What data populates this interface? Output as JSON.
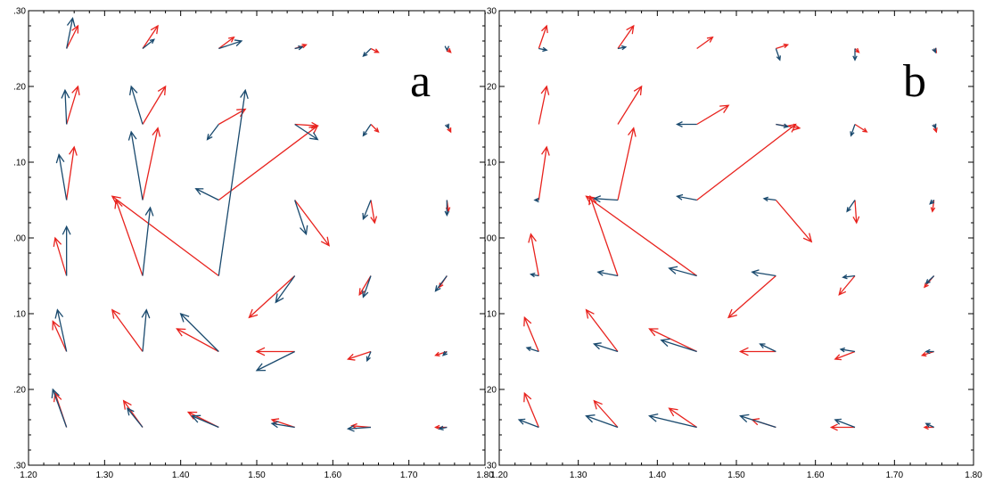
{
  "chart_data": [
    {
      "type": "scatter",
      "subtype": "vector-field",
      "panel_label": "a",
      "xlim": [
        1.2,
        1.8
      ],
      "ylim": [
        -0.3,
        0.3
      ],
      "xticks": [
        "1.20",
        "1.30",
        "1.40",
        "1.50",
        "1.60",
        "1.70",
        "1.80"
      ],
      "yticks": [
        ".30",
        ".20",
        ".10",
        ".00",
        ".10",
        ".20",
        ".30"
      ],
      "grid": false,
      "colors": {
        "series1": "#e8231e",
        "series2": "#1a4a6e"
      },
      "series": [
        {
          "color": "#e8231e",
          "vectors": [
            [
              1.25,
              0.25,
              1.265,
              0.28
            ],
            [
              1.35,
              0.25,
              1.37,
              0.28
            ],
            [
              1.45,
              0.25,
              1.47,
              0.265
            ],
            [
              1.55,
              0.25,
              1.565,
              0.255
            ],
            [
              1.65,
              0.25,
              1.66,
              0.245
            ],
            [
              1.75,
              0.25,
              1.755,
              0.245
            ],
            [
              1.25,
              0.15,
              1.265,
              0.2
            ],
            [
              1.35,
              0.15,
              1.38,
              0.2
            ],
            [
              1.45,
              0.15,
              1.485,
              0.17
            ],
            [
              1.55,
              0.15,
              1.58,
              0.148
            ],
            [
              1.65,
              0.15,
              1.66,
              0.14
            ],
            [
              1.75,
              0.15,
              1.755,
              0.14
            ],
            [
              1.25,
              0.05,
              1.26,
              0.12
            ],
            [
              1.35,
              0.05,
              1.37,
              0.145
            ],
            [
              1.45,
              0.05,
              1.58,
              0.148
            ],
            [
              1.55,
              0.05,
              1.595,
              -0.01
            ],
            [
              1.65,
              0.05,
              1.655,
              0.02
            ],
            [
              1.75,
              0.05,
              1.752,
              0.035
            ],
            [
              1.25,
              -0.05,
              1.235,
              0.0
            ],
            [
              1.35,
              -0.05,
              1.315,
              0.05
            ],
            [
              1.45,
              -0.05,
              1.31,
              0.055
            ],
            [
              1.55,
              -0.05,
              1.49,
              -0.105
            ],
            [
              1.65,
              -0.05,
              1.635,
              -0.075
            ],
            [
              1.75,
              -0.05,
              1.74,
              -0.065
            ],
            [
              1.25,
              -0.15,
              1.232,
              -0.11
            ],
            [
              1.35,
              -0.15,
              1.31,
              -0.095
            ],
            [
              1.45,
              -0.15,
              1.395,
              -0.12
            ],
            [
              1.55,
              -0.15,
              1.5,
              -0.15
            ],
            [
              1.65,
              -0.15,
              1.62,
              -0.16
            ],
            [
              1.75,
              -0.15,
              1.735,
              -0.155
            ],
            [
              1.25,
              -0.25,
              1.235,
              -0.205
            ],
            [
              1.35,
              -0.25,
              1.325,
              -0.215
            ],
            [
              1.45,
              -0.25,
              1.41,
              -0.23
            ],
            [
              1.55,
              -0.25,
              1.52,
              -0.24
            ],
            [
              1.65,
              -0.25,
              1.625,
              -0.248
            ],
            [
              1.75,
              -0.25,
              1.735,
              -0.25
            ]
          ]
        },
        {
          "color": "#1a4a6e",
          "vectors": [
            [
              1.25,
              0.25,
              1.258,
              0.29
            ],
            [
              1.35,
              0.25,
              1.365,
              0.262
            ],
            [
              1.45,
              0.25,
              1.48,
              0.26
            ],
            [
              1.55,
              0.25,
              1.56,
              0.252
            ],
            [
              1.65,
              0.25,
              1.64,
              0.24
            ],
            [
              1.75,
              0.25,
              1.75,
              0.248
            ],
            [
              1.25,
              0.15,
              1.248,
              0.195
            ],
            [
              1.35,
              0.15,
              1.335,
              0.2
            ],
            [
              1.45,
              0.15,
              1.435,
              0.13
            ],
            [
              1.55,
              0.15,
              1.58,
              0.13
            ],
            [
              1.65,
              0.15,
              1.64,
              0.135
            ],
            [
              1.75,
              0.15,
              1.752,
              0.145
            ],
            [
              1.25,
              0.05,
              1.24,
              0.11
            ],
            [
              1.35,
              0.05,
              1.335,
              0.14
            ],
            [
              1.45,
              0.05,
              1.42,
              0.065
            ],
            [
              1.55,
              0.05,
              1.565,
              0.005
            ],
            [
              1.65,
              0.05,
              1.64,
              0.025
            ],
            [
              1.75,
              0.05,
              1.75,
              0.03
            ],
            [
              1.25,
              -0.05,
              1.25,
              0.015
            ],
            [
              1.35,
              -0.05,
              1.36,
              0.04
            ],
            [
              1.45,
              -0.05,
              1.485,
              0.195
            ],
            [
              1.55,
              -0.05,
              1.525,
              -0.085
            ],
            [
              1.65,
              -0.05,
              1.64,
              -0.078
            ],
            [
              1.75,
              -0.05,
              1.735,
              -0.07
            ],
            [
              1.25,
              -0.15,
              1.238,
              -0.095
            ],
            [
              1.35,
              -0.15,
              1.355,
              -0.095
            ],
            [
              1.45,
              -0.15,
              1.4,
              -0.1
            ],
            [
              1.55,
              -0.15,
              1.5,
              -0.175
            ],
            [
              1.65,
              -0.15,
              1.645,
              -0.162
            ],
            [
              1.75,
              -0.15,
              1.745,
              -0.155
            ],
            [
              1.25,
              -0.25,
              1.232,
              -0.2
            ],
            [
              1.35,
              -0.25,
              1.33,
              -0.225
            ],
            [
              1.45,
              -0.25,
              1.415,
              -0.235
            ],
            [
              1.55,
              -0.25,
              1.52,
              -0.245
            ],
            [
              1.65,
              -0.25,
              1.62,
              -0.252
            ],
            [
              1.75,
              -0.25,
              1.74,
              -0.252
            ]
          ]
        }
      ]
    },
    {
      "type": "scatter",
      "subtype": "vector-field",
      "panel_label": "b",
      "xlim": [
        1.2,
        1.8
      ],
      "ylim": [
        -0.3,
        0.3
      ],
      "xticks": [
        "1.20",
        "1.30",
        "1.40",
        "1.50",
        "1.60",
        "1.70",
        "1.80"
      ],
      "yticks": [
        ".30",
        ".20",
        ".10",
        ".00",
        ".10",
        ".20",
        ".30"
      ],
      "grid": false,
      "colors": {
        "series1": "#e8231e",
        "series2": "#1a4a6e"
      },
      "series": [
        {
          "color": "#e8231e",
          "vectors": [
            [
              1.25,
              0.25,
              1.26,
              0.28
            ],
            [
              1.35,
              0.25,
              1.37,
              0.28
            ],
            [
              1.45,
              0.25,
              1.47,
              0.265
            ],
            [
              1.55,
              0.25,
              1.565,
              0.255
            ],
            [
              1.65,
              0.25,
              1.655,
              0.245
            ],
            [
              1.75,
              0.25,
              1.753,
              0.245
            ],
            [
              1.25,
              0.15,
              1.26,
              0.2
            ],
            [
              1.35,
              0.15,
              1.38,
              0.2
            ],
            [
              1.45,
              0.15,
              1.49,
              0.175
            ],
            [
              1.55,
              0.15,
              1.58,
              0.145
            ],
            [
              1.65,
              0.15,
              1.665,
              0.14
            ],
            [
              1.75,
              0.15,
              1.753,
              0.14
            ],
            [
              1.25,
              0.05,
              1.26,
              0.12
            ],
            [
              1.35,
              0.05,
              1.37,
              0.145
            ],
            [
              1.45,
              0.05,
              1.575,
              0.15
            ],
            [
              1.55,
              0.05,
              1.595,
              -0.005
            ],
            [
              1.65,
              0.05,
              1.652,
              0.02
            ],
            [
              1.75,
              0.05,
              1.748,
              0.035
            ],
            [
              1.25,
              -0.05,
              1.24,
              0.005
            ],
            [
              1.35,
              -0.05,
              1.315,
              0.055
            ],
            [
              1.45,
              -0.05,
              1.31,
              0.055
            ],
            [
              1.55,
              -0.05,
              1.49,
              -0.105
            ],
            [
              1.65,
              -0.05,
              1.63,
              -0.075
            ],
            [
              1.75,
              -0.05,
              1.738,
              -0.065
            ],
            [
              1.25,
              -0.15,
              1.232,
              -0.105
            ],
            [
              1.35,
              -0.15,
              1.31,
              -0.095
            ],
            [
              1.45,
              -0.15,
              1.39,
              -0.12
            ],
            [
              1.55,
              -0.15,
              1.505,
              -0.15
            ],
            [
              1.65,
              -0.15,
              1.625,
              -0.16
            ],
            [
              1.75,
              -0.15,
              1.735,
              -0.155
            ],
            [
              1.25,
              -0.25,
              1.232,
              -0.205
            ],
            [
              1.35,
              -0.25,
              1.32,
              -0.215
            ],
            [
              1.45,
              -0.25,
              1.415,
              -0.225
            ],
            [
              1.55,
              -0.25,
              1.52,
              -0.24
            ],
            [
              1.65,
              -0.25,
              1.62,
              -0.25
            ],
            [
              1.75,
              -0.25,
              1.738,
              -0.25
            ]
          ]
        },
        {
          "color": "#1a4a6e",
          "vectors": [
            [
              1.25,
              0.25,
              1.26,
              0.248
            ],
            [
              1.35,
              0.25,
              1.36,
              0.252
            ],
            [
              1.45,
              0.25,
              1.45,
              0.25
            ],
            [
              1.55,
              0.25,
              1.555,
              0.235
            ],
            [
              1.65,
              0.25,
              1.65,
              0.235
            ],
            [
              1.75,
              0.25,
              1.752,
              0.245
            ],
            [
              1.25,
              0.15,
              1.25,
              0.15
            ],
            [
              1.35,
              0.15,
              1.35,
              0.15
            ],
            [
              1.45,
              0.15,
              1.425,
              0.15
            ],
            [
              1.55,
              0.15,
              1.565,
              0.147
            ],
            [
              1.65,
              0.15,
              1.645,
              0.135
            ],
            [
              1.75,
              0.15,
              1.752,
              0.145
            ],
            [
              1.25,
              0.05,
              1.245,
              0.05
            ],
            [
              1.35,
              0.05,
              1.32,
              0.052
            ],
            [
              1.45,
              0.05,
              1.425,
              0.055
            ],
            [
              1.55,
              0.05,
              1.535,
              0.052
            ],
            [
              1.65,
              0.05,
              1.64,
              0.035
            ],
            [
              1.75,
              0.05,
              1.745,
              0.045
            ],
            [
              1.25,
              -0.05,
              1.24,
              -0.048
            ],
            [
              1.35,
              -0.05,
              1.325,
              -0.045
            ],
            [
              1.45,
              -0.05,
              1.415,
              -0.04
            ],
            [
              1.55,
              -0.05,
              1.52,
              -0.045
            ],
            [
              1.65,
              -0.05,
              1.635,
              -0.052
            ],
            [
              1.75,
              -0.05,
              1.74,
              -0.06
            ],
            [
              1.25,
              -0.15,
              1.235,
              -0.145
            ],
            [
              1.35,
              -0.15,
              1.32,
              -0.14
            ],
            [
              1.45,
              -0.15,
              1.405,
              -0.135
            ],
            [
              1.55,
              -0.15,
              1.53,
              -0.14
            ],
            [
              1.65,
              -0.15,
              1.632,
              -0.147
            ],
            [
              1.75,
              -0.15,
              1.74,
              -0.15
            ],
            [
              1.25,
              -0.25,
              1.225,
              -0.24
            ],
            [
              1.35,
              -0.25,
              1.31,
              -0.235
            ],
            [
              1.45,
              -0.25,
              1.39,
              -0.235
            ],
            [
              1.55,
              -0.25,
              1.505,
              -0.235
            ],
            [
              1.65,
              -0.25,
              1.625,
              -0.24
            ],
            [
              1.75,
              -0.25,
              1.74,
              -0.245
            ]
          ]
        }
      ]
    }
  ]
}
